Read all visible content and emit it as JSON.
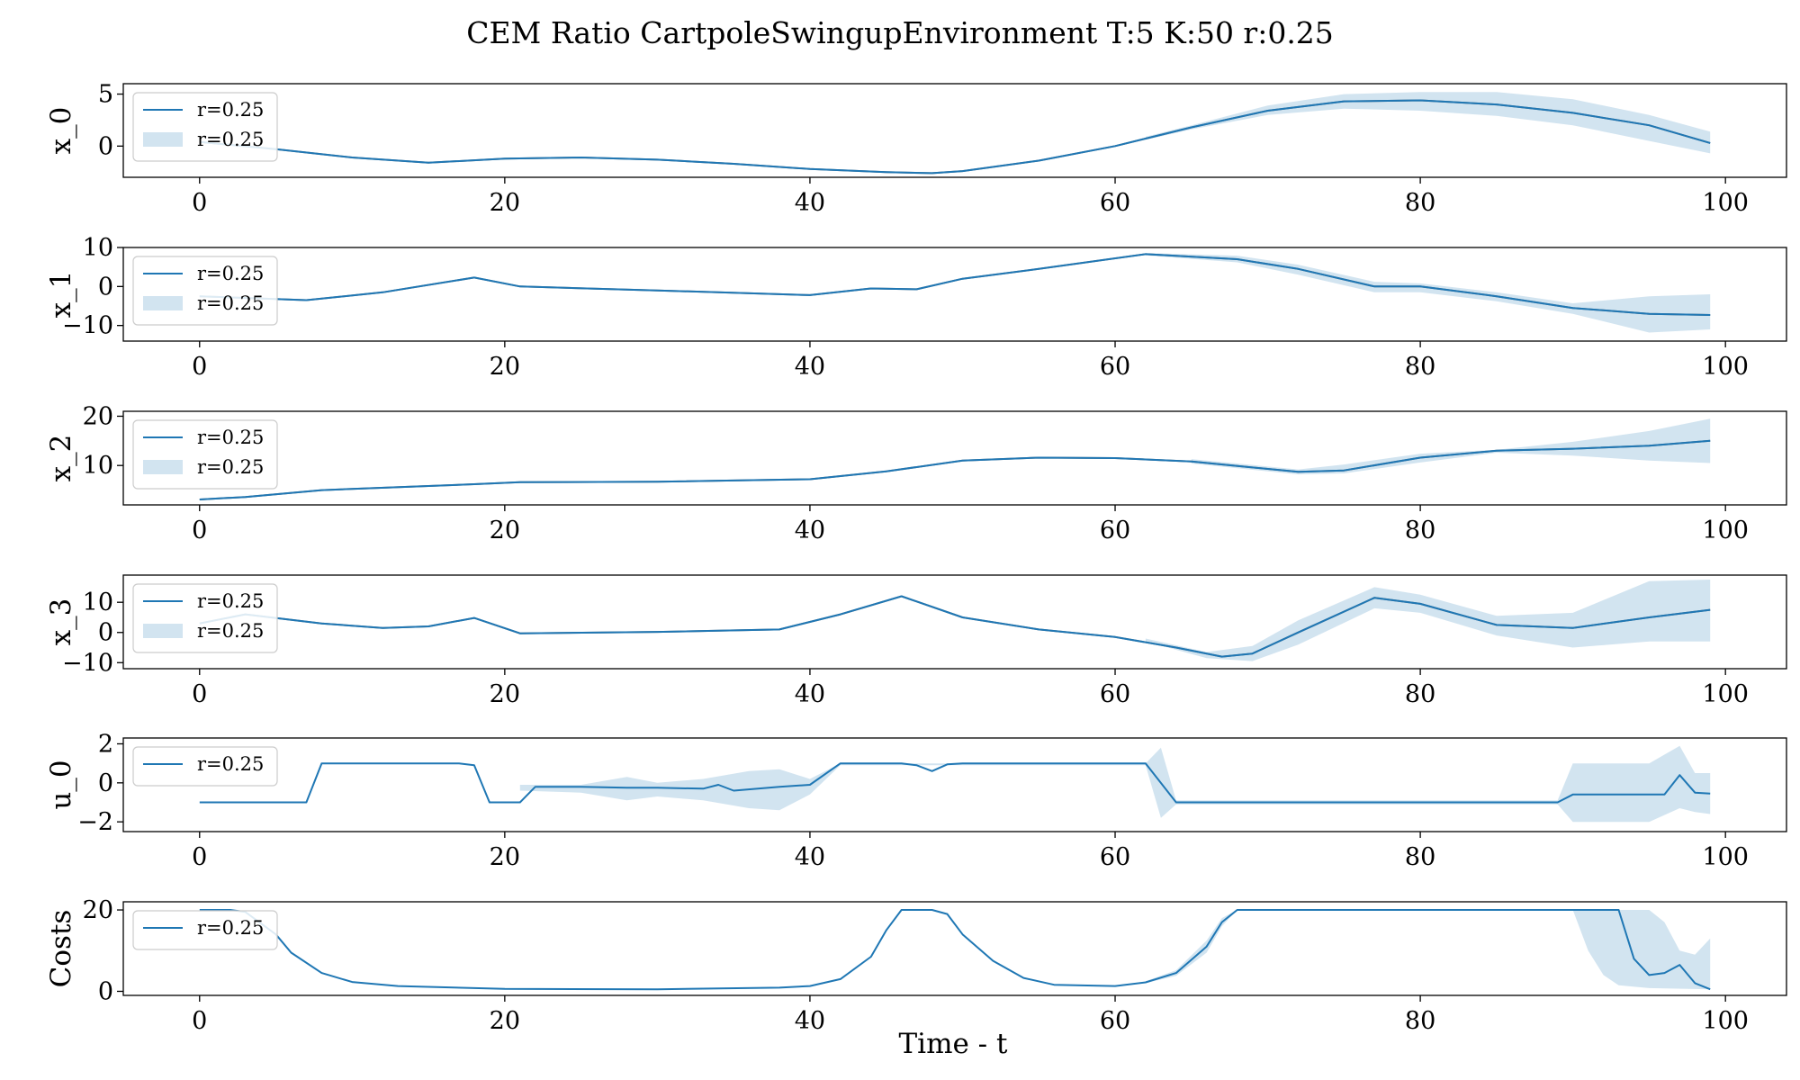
{
  "chart_data": {
    "title": "CEM Ratio CartpoleSwingupEnvironment T:5 K:50 r:0.25",
    "xlabel": "Time - t",
    "type": "line",
    "xlim": [
      -5,
      104
    ],
    "xticks": [
      0,
      20,
      40,
      60,
      80,
      100
    ],
    "colors": {
      "line": "#1f77b4",
      "band": "#1f77b4",
      "ghost": "#555555"
    },
    "panels": [
      {
        "ylabel": "x_0",
        "ylim": [
          -3,
          6
        ],
        "yticks": [
          0,
          5
        ],
        "legend": [
          "r=0.25",
          "r=0.25"
        ],
        "line": [
          [
            0,
            0.4
          ],
          [
            5,
            -0.3
          ],
          [
            10,
            -1.1
          ],
          [
            15,
            -1.6
          ],
          [
            20,
            -1.2
          ],
          [
            25,
            -1.1
          ],
          [
            30,
            -1.3
          ],
          [
            35,
            -1.7
          ],
          [
            40,
            -2.2
          ],
          [
            45,
            -2.5
          ],
          [
            48,
            -2.6
          ],
          [
            50,
            -2.4
          ],
          [
            55,
            -1.4
          ],
          [
            60,
            0.0
          ],
          [
            65,
            1.8
          ],
          [
            70,
            3.4
          ],
          [
            75,
            4.3
          ],
          [
            80,
            4.4
          ],
          [
            85,
            4.0
          ],
          [
            90,
            3.2
          ],
          [
            95,
            2.0
          ],
          [
            99,
            0.3
          ]
        ],
        "band_upper": [
          [
            62,
            0.9
          ],
          [
            65,
            2.0
          ],
          [
            70,
            3.9
          ],
          [
            75,
            5.0
          ],
          [
            80,
            5.2
          ],
          [
            85,
            5.2
          ],
          [
            90,
            4.5
          ],
          [
            95,
            3.0
          ],
          [
            99,
            1.4
          ]
        ],
        "band_lower": [
          [
            62,
            0.6
          ],
          [
            65,
            1.6
          ],
          [
            70,
            3.0
          ],
          [
            75,
            3.6
          ],
          [
            80,
            3.4
          ],
          [
            85,
            2.9
          ],
          [
            90,
            2.0
          ],
          [
            95,
            0.5
          ],
          [
            99,
            -0.7
          ]
        ]
      },
      {
        "ylabel": "x_1",
        "ylim": [
          -14,
          10
        ],
        "yticks": [
          -10,
          0,
          10
        ],
        "legend": [
          "r=0.25",
          "r=0.25"
        ],
        "line": [
          [
            0,
            -2.5
          ],
          [
            7,
            -3.5
          ],
          [
            12,
            -1.5
          ],
          [
            18,
            2.3
          ],
          [
            21,
            0.0
          ],
          [
            30,
            -1.0
          ],
          [
            40,
            -2.2
          ],
          [
            44,
            -0.5
          ],
          [
            47,
            -0.7
          ],
          [
            50,
            2.0
          ],
          [
            55,
            4.5
          ],
          [
            62,
            8.3
          ],
          [
            68,
            7.0
          ],
          [
            72,
            4.5
          ],
          [
            77,
            0.0
          ],
          [
            80,
            0.0
          ],
          [
            85,
            -2.5
          ],
          [
            90,
            -5.5
          ],
          [
            95,
            -7.0
          ],
          [
            99,
            -7.3
          ]
        ],
        "band_upper": [
          [
            62,
            8.6
          ],
          [
            68,
            7.9
          ],
          [
            72,
            5.6
          ],
          [
            77,
            1.2
          ],
          [
            80,
            0.8
          ],
          [
            85,
            -1.5
          ],
          [
            90,
            -4.3
          ],
          [
            95,
            -2.5
          ],
          [
            99,
            -2.0
          ]
        ],
        "band_lower": [
          [
            62,
            8.0
          ],
          [
            68,
            6.2
          ],
          [
            72,
            3.0
          ],
          [
            77,
            -1.5
          ],
          [
            80,
            -1.5
          ],
          [
            85,
            -3.8
          ],
          [
            90,
            -7.0
          ],
          [
            95,
            -11.8
          ],
          [
            99,
            -11.0
          ]
        ]
      },
      {
        "ylabel": "x_2",
        "ylim": [
          2,
          21
        ],
        "yticks": [
          10,
          20
        ],
        "legend": [
          "r=0.25",
          "r=0.25"
        ],
        "line": [
          [
            0,
            3.1
          ],
          [
            3,
            3.6
          ],
          [
            8,
            5.0
          ],
          [
            18,
            6.2
          ],
          [
            21,
            6.6
          ],
          [
            30,
            6.7
          ],
          [
            40,
            7.2
          ],
          [
            45,
            8.8
          ],
          [
            50,
            11.0
          ],
          [
            55,
            11.6
          ],
          [
            60,
            11.5
          ],
          [
            65,
            10.8
          ],
          [
            72,
            8.7
          ],
          [
            75,
            9.0
          ],
          [
            80,
            11.6
          ],
          [
            85,
            13.0
          ],
          [
            90,
            13.4
          ],
          [
            95,
            14.0
          ],
          [
            99,
            15.0
          ]
        ],
        "band_upper": [
          [
            65,
            11.3
          ],
          [
            72,
            9.2
          ],
          [
            75,
            10.2
          ],
          [
            80,
            12.4
          ],
          [
            85,
            13.2
          ],
          [
            90,
            14.8
          ],
          [
            95,
            17.0
          ],
          [
            99,
            19.5
          ]
        ],
        "band_lower": [
          [
            65,
            10.4
          ],
          [
            72,
            8.2
          ],
          [
            75,
            8.4
          ],
          [
            80,
            10.6
          ],
          [
            85,
            12.6
          ],
          [
            90,
            12.0
          ],
          [
            95,
            11.0
          ],
          [
            99,
            10.5
          ]
        ]
      },
      {
        "ylabel": "x_3",
        "ylim": [
          -12,
          19
        ],
        "yticks": [
          -10,
          0,
          10
        ],
        "legend": [
          "r=0.25",
          "r=0.25"
        ],
        "line": [
          [
            0,
            3.0
          ],
          [
            3,
            6.0
          ],
          [
            8,
            3.0
          ],
          [
            12,
            1.5
          ],
          [
            15,
            2.0
          ],
          [
            18,
            4.8
          ],
          [
            21,
            -0.3
          ],
          [
            30,
            0.2
          ],
          [
            38,
            1.0
          ],
          [
            42,
            6.0
          ],
          [
            46,
            12.0
          ],
          [
            50,
            5.0
          ],
          [
            55,
            1.0
          ],
          [
            60,
            -1.5
          ],
          [
            64,
            -5.0
          ],
          [
            67,
            -8.0
          ],
          [
            69,
            -7.0
          ],
          [
            72,
            0.0
          ],
          [
            77,
            11.5
          ],
          [
            80,
            9.5
          ],
          [
            85,
            2.5
          ],
          [
            90,
            1.5
          ],
          [
            95,
            5.0
          ],
          [
            99,
            7.5
          ]
        ],
        "band_upper": [
          [
            62,
            -2.0
          ],
          [
            66,
            -6.5
          ],
          [
            69,
            -4.5
          ],
          [
            72,
            4.0
          ],
          [
            77,
            15.0
          ],
          [
            80,
            12.5
          ],
          [
            85,
            5.5
          ],
          [
            90,
            6.5
          ],
          [
            95,
            17.0
          ],
          [
            99,
            17.5
          ]
        ],
        "band_lower": [
          [
            62,
            -3.0
          ],
          [
            66,
            -8.5
          ],
          [
            69,
            -9.5
          ],
          [
            72,
            -4.0
          ],
          [
            77,
            8.0
          ],
          [
            80,
            6.5
          ],
          [
            85,
            -1.0
          ],
          [
            90,
            -5.0
          ],
          [
            95,
            -3.0
          ],
          [
            99,
            -3.0
          ]
        ]
      },
      {
        "ylabel": "u_0",
        "ylim": [
          -2.5,
          2.3
        ],
        "yticks": [
          -2,
          0,
          2
        ],
        "legend": [
          "r=0.25"
        ],
        "line": [
          [
            0,
            -1
          ],
          [
            7,
            -1
          ],
          [
            8,
            1
          ],
          [
            17,
            1
          ],
          [
            18,
            0.9
          ],
          [
            19,
            -1
          ],
          [
            21,
            -1
          ],
          [
            22,
            -0.2
          ],
          [
            25,
            -0.2
          ],
          [
            28,
            -0.25
          ],
          [
            30,
            -0.25
          ],
          [
            33,
            -0.3
          ],
          [
            34,
            -0.1
          ],
          [
            35,
            -0.4
          ],
          [
            38,
            -0.2
          ],
          [
            40,
            -0.1
          ],
          [
            42,
            1
          ],
          [
            46,
            1
          ],
          [
            47,
            0.9
          ],
          [
            48,
            0.6
          ],
          [
            49,
            0.95
          ],
          [
            50,
            1
          ],
          [
            62,
            1
          ],
          [
            64,
            -1
          ],
          [
            89,
            -1
          ],
          [
            90,
            -0.6
          ],
          [
            95,
            -0.6
          ],
          [
            96,
            -0.6
          ],
          [
            97,
            0.4
          ],
          [
            98,
            -0.5
          ],
          [
            99,
            -0.55
          ]
        ],
        "band_upper": [
          [
            21,
            -0.1
          ],
          [
            25,
            -0.1
          ],
          [
            28,
            0.3
          ],
          [
            30,
            0.0
          ],
          [
            33,
            0.2
          ],
          [
            36,
            0.6
          ],
          [
            38,
            0.7
          ],
          [
            40,
            0.2
          ],
          [
            42,
            1.0
          ],
          [
            62,
            1.0
          ],
          [
            63,
            1.8
          ],
          [
            64,
            -0.9
          ],
          [
            89,
            -0.9
          ],
          [
            90,
            1.0
          ],
          [
            95,
            1.0
          ],
          [
            97,
            1.9
          ],
          [
            98,
            0.5
          ],
          [
            99,
            0.5
          ]
        ],
        "band_lower": [
          [
            21,
            -0.4
          ],
          [
            25,
            -0.5
          ],
          [
            28,
            -0.9
          ],
          [
            30,
            -0.7
          ],
          [
            33,
            -0.9
          ],
          [
            36,
            -1.3
          ],
          [
            38,
            -1.4
          ],
          [
            40,
            -0.6
          ],
          [
            42,
            0.9
          ],
          [
            62,
            0.9
          ],
          [
            63,
            -1.8
          ],
          [
            64,
            -1.1
          ],
          [
            89,
            -1.1
          ],
          [
            90,
            -2.0
          ],
          [
            95,
            -2.0
          ],
          [
            97,
            -1.3
          ],
          [
            98,
            -1.5
          ],
          [
            99,
            -1.6
          ]
        ]
      },
      {
        "ylabel": "Costs",
        "ylim": [
          -1,
          22
        ],
        "yticks": [
          0,
          20
        ],
        "legend": [
          "r=0.25"
        ],
        "line": [
          [
            0,
            20
          ],
          [
            2,
            20
          ],
          [
            3,
            19.5
          ],
          [
            5,
            14
          ],
          [
            6,
            9.5
          ],
          [
            8,
            4.5
          ],
          [
            10,
            2.3
          ],
          [
            13,
            1.3
          ],
          [
            20,
            0.6
          ],
          [
            30,
            0.5
          ],
          [
            38,
            0.9
          ],
          [
            40,
            1.3
          ],
          [
            42,
            3.0
          ],
          [
            44,
            8.5
          ],
          [
            45,
            15
          ],
          [
            46,
            20
          ],
          [
            48,
            20
          ],
          [
            49,
            19
          ],
          [
            50,
            14
          ],
          [
            52,
            7.5
          ],
          [
            54,
            3.3
          ],
          [
            56,
            1.6
          ],
          [
            60,
            1.3
          ],
          [
            62,
            2.2
          ],
          [
            64,
            4.5
          ],
          [
            66,
            11
          ],
          [
            67,
            17
          ],
          [
            68,
            20
          ],
          [
            93,
            20
          ],
          [
            94,
            8
          ],
          [
            95,
            4
          ],
          [
            96,
            4.5
          ],
          [
            97,
            6.5
          ],
          [
            98,
            2
          ],
          [
            99,
            0.5
          ]
        ],
        "band_upper": [
          [
            62,
            2.5
          ],
          [
            64,
            5.2
          ],
          [
            66,
            12.5
          ],
          [
            67,
            18
          ],
          [
            68,
            20
          ],
          [
            93,
            20
          ],
          [
            95,
            20
          ],
          [
            96,
            17
          ],
          [
            97,
            10
          ],
          [
            98,
            9
          ],
          [
            99,
            13
          ]
        ],
        "band_lower": [
          [
            62,
            2.0
          ],
          [
            64,
            3.8
          ],
          [
            66,
            9.5
          ],
          [
            67,
            16
          ],
          [
            68,
            20
          ],
          [
            90,
            20
          ],
          [
            91,
            10
          ],
          [
            92,
            4
          ],
          [
            93,
            1.5
          ],
          [
            95,
            0.8
          ],
          [
            99,
            0.5
          ]
        ]
      }
    ]
  }
}
